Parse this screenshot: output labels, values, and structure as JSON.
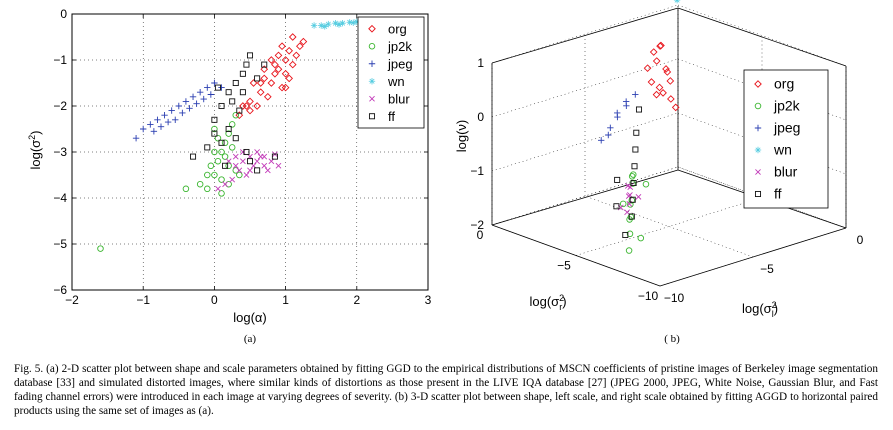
{
  "figure": {
    "caption": "Fig. 5.   (a) 2-D scatter plot between shape and scale parameters obtained by fitting GGD to the empirical distributions of MSCN coefficients of pristine images of Berkeley image segmentation database [33] and simulated distorted images, where similar kinds of distortions as those present in the LIVE IQA database [27] (JPEG 2000, JPEG, White Noise, Gaussian Blur, and Fast fading channel errors) were introduced in each image at varying degrees of severity. (b) 3-D scatter plot between shape, left scale, and right scale obtained by fitting AGGD to horizontal paired products using the same set of images as (a).",
    "sub_a_label": "(a)",
    "sub_b_label": "( b)"
  },
  "chart_data": [
    {
      "type": "scatter",
      "id": "a",
      "xlabel": "log(α)",
      "ylabel": "log(σ²)",
      "xlim": [
        -2,
        3
      ],
      "ylim": [
        -6,
        0
      ],
      "xticks": [
        "−2",
        "−1",
        "0",
        "1",
        "2",
        "3"
      ],
      "yticks": [
        "−6",
        "−5",
        "−4",
        "−3",
        "−2",
        "−1",
        "0"
      ],
      "grid": true,
      "legend_position": "top-right",
      "series": [
        {
          "name": "org",
          "marker": "diamond",
          "color": "#e8141b",
          "points": [
            [
              0.35,
              -2.2
            ],
            [
              0.5,
              -1.9
            ],
            [
              0.65,
              -1.7
            ],
            [
              0.7,
              -1.4
            ],
            [
              0.8,
              -1.5
            ],
            [
              0.9,
              -1.2
            ],
            [
              1.0,
              -1.0
            ],
            [
              1.05,
              -0.8
            ],
            [
              1.1,
              -1.1
            ],
            [
              1.15,
              -0.9
            ],
            [
              0.95,
              -1.6
            ],
            [
              0.85,
              -1.3
            ],
            [
              0.75,
              -1.8
            ],
            [
              0.6,
              -2.0
            ],
            [
              1.2,
              -0.7
            ],
            [
              1.1,
              -0.5
            ],
            [
              0.55,
              -1.5
            ],
            [
              0.45,
              -2.0
            ],
            [
              1.0,
              -1.3
            ],
            [
              0.9,
              -0.9
            ],
            [
              0.8,
              -1.0
            ],
            [
              0.7,
              -1.2
            ],
            [
              1.05,
              -1.4
            ],
            [
              1.25,
              -0.6
            ],
            [
              0.95,
              -0.7
            ],
            [
              0.65,
              -1.5
            ],
            [
              0.5,
              -2.1
            ],
            [
              0.4,
              -2.0
            ],
            [
              0.85,
              -1.1
            ],
            [
              1.0,
              -1.6
            ]
          ]
        },
        {
          "name": "jp2k",
          "marker": "circle",
          "color": "#3cb631",
          "points": [
            [
              -1.6,
              -5.1
            ],
            [
              -0.4,
              -3.8
            ],
            [
              -0.1,
              -3.8
            ],
            [
              0.0,
              -3.5
            ],
            [
              0.05,
              -3.2
            ],
            [
              0.1,
              -3.0
            ],
            [
              0.15,
              -2.8
            ],
            [
              0.2,
              -2.6
            ],
            [
              0.25,
              -2.4
            ],
            [
              0.0,
              -3.0
            ],
            [
              -0.05,
              -3.3
            ],
            [
              0.1,
              -3.6
            ],
            [
              0.2,
              -3.7
            ],
            [
              0.3,
              -3.4
            ],
            [
              0.15,
              -3.1
            ],
            [
              0.05,
              -2.7
            ],
            [
              0.25,
              -2.9
            ],
            [
              0.35,
              -3.5
            ],
            [
              -0.2,
              -3.7
            ],
            [
              0.1,
              -3.9
            ],
            [
              0.0,
              -2.5
            ],
            [
              0.3,
              -2.2
            ],
            [
              0.2,
              -3.3
            ],
            [
              -0.1,
              -3.5
            ]
          ]
        },
        {
          "name": "jpeg",
          "marker": "plus",
          "color": "#2a3eb1",
          "points": [
            [
              -1.0,
              -2.5
            ],
            [
              -0.9,
              -2.4
            ],
            [
              -0.8,
              -2.3
            ],
            [
              -0.7,
              -2.2
            ],
            [
              -0.6,
              -2.1
            ],
            [
              -0.5,
              -2.0
            ],
            [
              -0.4,
              -1.9
            ],
            [
              -0.3,
              -1.8
            ],
            [
              -0.2,
              -1.7
            ],
            [
              -0.1,
              -1.6
            ],
            [
              -0.85,
              -2.55
            ],
            [
              -0.65,
              -2.35
            ],
            [
              -0.45,
              -2.15
            ],
            [
              -0.25,
              -1.95
            ],
            [
              -0.05,
              -1.75
            ],
            [
              0.1,
              -1.6
            ],
            [
              0.0,
              -1.5
            ],
            [
              -0.55,
              -2.3
            ],
            [
              -0.75,
              -2.45
            ],
            [
              -0.35,
              -2.05
            ],
            [
              -1.1,
              -2.7
            ],
            [
              -0.15,
              -1.85
            ]
          ]
        },
        {
          "name": "wn",
          "marker": "star",
          "color": "#55cce0",
          "points": [
            [
              1.4,
              -0.25
            ],
            [
              1.5,
              -0.25
            ],
            [
              1.6,
              -0.22
            ],
            [
              1.7,
              -0.2
            ],
            [
              1.8,
              -0.2
            ],
            [
              1.9,
              -0.18
            ],
            [
              2.0,
              -0.17
            ],
            [
              2.1,
              -0.15
            ],
            [
              2.2,
              -0.14
            ],
            [
              2.3,
              -0.13
            ],
            [
              1.55,
              -0.27
            ],
            [
              1.75,
              -0.23
            ],
            [
              1.95,
              -0.19
            ],
            [
              2.15,
              -0.16
            ]
          ]
        },
        {
          "name": "blur",
          "marker": "x",
          "color": "#c23ab8",
          "points": [
            [
              0.2,
              -3.2
            ],
            [
              0.3,
              -3.1
            ],
            [
              0.4,
              -3.0
            ],
            [
              0.5,
              -3.1
            ],
            [
              0.6,
              -3.2
            ],
            [
              0.7,
              -3.3
            ],
            [
              0.8,
              -3.2
            ],
            [
              0.9,
              -3.3
            ],
            [
              0.35,
              -3.4
            ],
            [
              0.45,
              -3.5
            ],
            [
              0.55,
              -3.3
            ],
            [
              0.65,
              -3.1
            ],
            [
              0.75,
              -3.4
            ],
            [
              0.25,
              -3.6
            ],
            [
              0.15,
              -3.7
            ],
            [
              0.05,
              -3.8
            ],
            [
              0.4,
              -3.2
            ],
            [
              0.6,
              -3.0
            ],
            [
              0.5,
              -3.4
            ],
            [
              0.3,
              -3.3
            ],
            [
              0.7,
              -3.1
            ],
            [
              0.85,
              -3.05
            ]
          ]
        },
        {
          "name": "ff",
          "marker": "square",
          "color": "#111111",
          "points": [
            [
              0.0,
              -2.3
            ],
            [
              0.1,
              -2.0
            ],
            [
              0.2,
              -1.7
            ],
            [
              0.3,
              -1.5
            ],
            [
              0.4,
              -1.3
            ],
            [
              0.45,
              -1.1
            ],
            [
              0.5,
              -0.9
            ],
            [
              0.0,
              -2.6
            ],
            [
              -0.1,
              -2.9
            ],
            [
              -0.3,
              -3.1
            ],
            [
              0.2,
              -2.5
            ],
            [
              0.35,
              -2.1
            ],
            [
              0.1,
              -2.8
            ],
            [
              0.3,
              -2.7
            ],
            [
              0.45,
              -3.0
            ],
            [
              0.6,
              -3.4
            ],
            [
              0.85,
              -3.1
            ],
            [
              0.5,
              -3.2
            ],
            [
              0.15,
              -3.3
            ],
            [
              0.25,
              -1.9
            ],
            [
              0.05,
              -1.6
            ],
            [
              0.4,
              -1.7
            ],
            [
              0.6,
              -1.4
            ],
            [
              0.7,
              -1.1
            ]
          ]
        }
      ],
      "legend": [
        "org",
        "jp2k",
        "jpeg",
        "wn",
        "blur",
        "ff"
      ]
    },
    {
      "type": "scatter",
      "id": "b",
      "projection": "3d",
      "xlabel": "log(σr²)",
      "ylabel": "log(σl²)",
      "zlabel": "log(ν)",
      "xlim": [
        -10,
        0
      ],
      "ylim": [
        -10,
        0
      ],
      "zlim": [
        -2,
        1
      ],
      "xticks": [
        "−10",
        "−5",
        "0"
      ],
      "yticks": [
        "−10",
        "−5",
        "0"
      ],
      "zticks": [
        "−2",
        "−1",
        "0",
        "1"
      ],
      "grid": true,
      "legend_position": "right",
      "series": [
        {
          "name": "org",
          "marker": "diamond",
          "color": "#e8141b",
          "points": [
            [
              -1.5,
              -2.5,
              0.4
            ],
            [
              -1.8,
              -2.2,
              0.2
            ],
            [
              -2.0,
              -2.8,
              0.0
            ],
            [
              -1.2,
              -2.0,
              0.6
            ],
            [
              -1.6,
              -2.6,
              -0.2
            ],
            [
              -2.2,
              -2.4,
              0.1
            ],
            [
              -1.4,
              -2.9,
              0.3
            ],
            [
              -1.9,
              -2.1,
              -0.3
            ],
            [
              -1.1,
              -2.3,
              0.5
            ],
            [
              -2.1,
              -2.7,
              -0.1
            ],
            [
              -1.7,
              -2.5,
              0.7
            ],
            [
              -1.3,
              -2.6,
              0.0
            ],
            [
              -2.3,
              -2.2,
              -0.4
            ],
            [
              -1.5,
              -2.0,
              0.2
            ]
          ]
        },
        {
          "name": "jp2k",
          "marker": "circle",
          "color": "#3cb631",
          "points": [
            [
              -4.5,
              -6.5,
              -1.1
            ],
            [
              -5.0,
              -7.0,
              -1.3
            ],
            [
              -5.5,
              -7.5,
              -1.5
            ],
            [
              -6.0,
              -8.0,
              -1.7
            ],
            [
              -4.8,
              -6.8,
              -0.9
            ],
            [
              -5.2,
              -7.3,
              -1.6
            ],
            [
              -6.5,
              -8.5,
              -1.9
            ],
            [
              -4.2,
              -6.2,
              -1.0
            ],
            [
              -5.8,
              -7.8,
              -1.2
            ],
            [
              -4.6,
              -7.1,
              -1.4
            ],
            [
              -5.4,
              -6.6,
              -1.0
            ],
            [
              -6.2,
              -7.6,
              -1.8
            ]
          ]
        },
        {
          "name": "jpeg",
          "marker": "plus",
          "color": "#2a3eb1",
          "points": [
            [
              -0.8,
              -3.5,
              -0.4
            ],
            [
              -0.6,
              -3.8,
              -0.6
            ],
            [
              -0.4,
              -4.0,
              -0.8
            ],
            [
              -1.0,
              -3.2,
              -0.2
            ],
            [
              -0.7,
              -3.9,
              -0.5
            ],
            [
              -0.5,
              -4.2,
              -0.9
            ],
            [
              -0.9,
              -3.6,
              -0.3
            ],
            [
              -0.3,
              -4.4,
              -1.0
            ]
          ]
        },
        {
          "name": "wn",
          "marker": "star",
          "color": "#55cce0",
          "points": [
            [
              -0.5,
              -0.5,
              1.4
            ],
            [
              -0.5,
              -0.5,
              1.3
            ],
            [
              -0.5,
              -0.5,
              1.2
            ],
            [
              -0.5,
              -0.5,
              1.5
            ],
            [
              -0.5,
              -0.5,
              1.6
            ]
          ]
        },
        {
          "name": "blur",
          "marker": "x",
          "color": "#c23ab8",
          "points": [
            [
              -4.0,
              -6.2,
              -1.4
            ],
            [
              -4.3,
              -6.5,
              -1.5
            ],
            [
              -3.8,
              -6.0,
              -1.3
            ],
            [
              -4.5,
              -6.8,
              -1.6
            ],
            [
              -4.1,
              -6.4,
              -1.2
            ],
            [
              -3.6,
              -5.9,
              -1.5
            ],
            [
              -4.4,
              -6.1,
              -1.4
            ],
            [
              -3.9,
              -6.6,
              -1.6
            ]
          ]
        },
        {
          "name": "ff",
          "marker": "square",
          "color": "#111111",
          "points": [
            [
              -3.0,
              -5.0,
              -0.8
            ],
            [
              -3.5,
              -5.5,
              -1.0
            ],
            [
              -4.0,
              -6.0,
              -1.2
            ],
            [
              -4.5,
              -6.5,
              -1.4
            ],
            [
              -5.0,
              -7.0,
              -1.6
            ],
            [
              -2.5,
              -4.5,
              -0.6
            ],
            [
              -1.0,
              -3.0,
              -0.5
            ],
            [
              -3.2,
              -6.2,
              -1.7
            ],
            [
              -5.5,
              -7.8,
              -1.8
            ],
            [
              -2.8,
              -5.8,
              -1.3
            ]
          ]
        }
      ],
      "legend": [
        "org",
        "jp2k",
        "jpeg",
        "wn",
        "blur",
        "ff"
      ]
    }
  ]
}
